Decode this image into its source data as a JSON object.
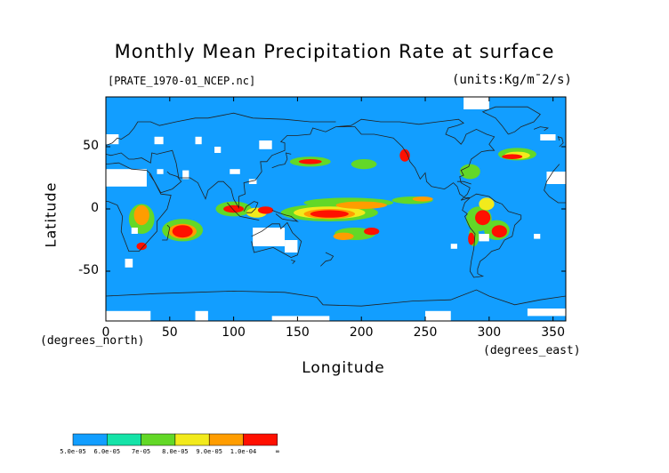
{
  "title": "Monthly Mean Precipitation Rate at surface",
  "file_label": "[PRATE_1970-01_NCEP.nc]",
  "units_label": "(units:Kg/m¯2/s)",
  "x_axis": {
    "label": "Longitude",
    "units": "(degrees_east)",
    "ticks": [
      "0",
      "50",
      "100",
      "150",
      "200",
      "250",
      "300",
      "350"
    ],
    "tick_values": [
      0,
      50,
      100,
      150,
      200,
      250,
      300,
      350
    ],
    "range": [
      0,
      360
    ]
  },
  "y_axis": {
    "label": "Latitude",
    "units": "(degrees_north)",
    "ticks": [
      "50",
      "0",
      "-50"
    ],
    "tick_values": [
      50,
      0,
      -50
    ],
    "range": [
      -90,
      90
    ]
  },
  "colorbar": {
    "labels": [
      "5.0e-05",
      "6.0e-05",
      "7e-05",
      "8.0e-05",
      "9.0e-05",
      "1.0e-04",
      "∞"
    ],
    "colors": [
      "#129eff",
      "#15e3a8",
      "#63d827",
      "#f2ea1c",
      "#ff9d00",
      "#ff1000"
    ]
  },
  "colors": {
    "background_field": "#129eff",
    "missing": "#ffffff",
    "coast": "#222222"
  }
}
